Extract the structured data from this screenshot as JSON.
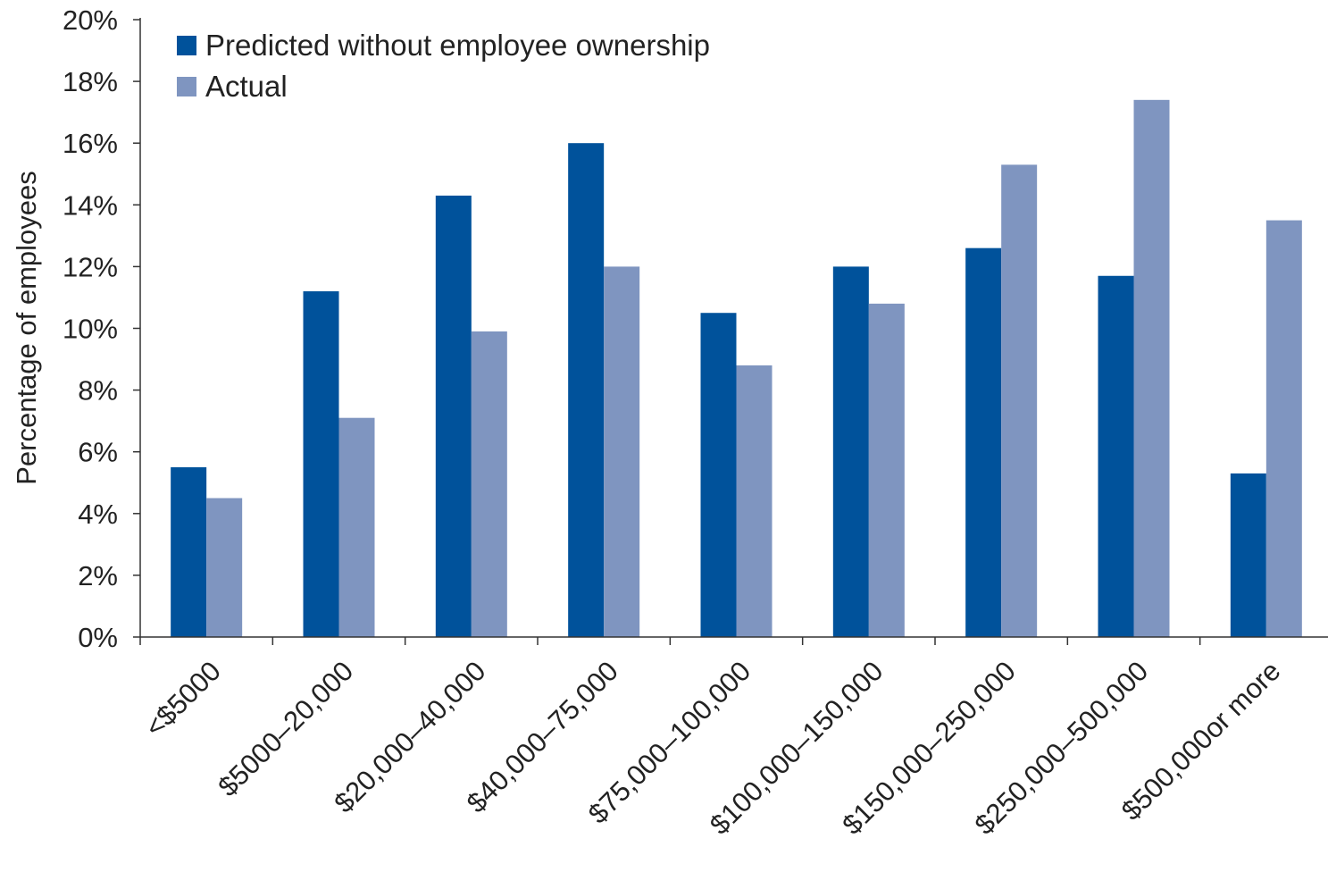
{
  "chart_data": {
    "type": "bar",
    "title": "",
    "xlabel": "",
    "ylabel": "Percentage of employees",
    "ylim": [
      0,
      20
    ],
    "y_ticks": [
      "0%",
      "2%",
      "4%",
      "6%",
      "8%",
      "10%",
      "12%",
      "14%",
      "16%",
      "18%",
      "20%"
    ],
    "grid": false,
    "legend_position": "top-left",
    "categories": [
      "<$5000",
      "$5000–20,000",
      "$20,000–40,000",
      "$40,000–75,000",
      "$75,000–100,000",
      "$100,000–150,000",
      "$150,000–250,000",
      "$250,000–500,000",
      "$500,000or more"
    ],
    "series": [
      {
        "name": "Predicted without employee ownership",
        "color": "#00529b",
        "values": [
          5.5,
          11.2,
          14.3,
          16.0,
          10.5,
          12.0,
          12.6,
          11.7,
          5.3
        ]
      },
      {
        "name": "Actual",
        "color": "#7f95c0",
        "values": [
          4.5,
          7.1,
          9.9,
          12.0,
          8.8,
          10.8,
          15.3,
          17.4,
          13.5
        ]
      }
    ]
  }
}
